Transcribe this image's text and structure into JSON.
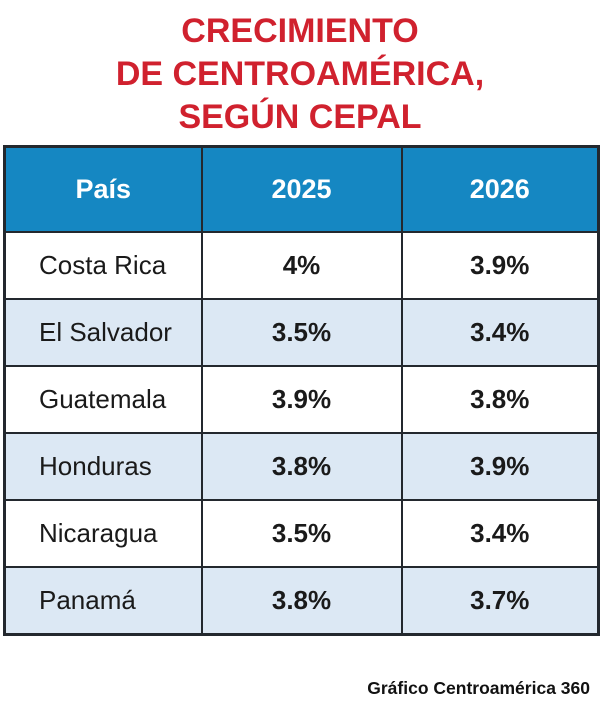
{
  "title": {
    "lines": [
      "CRECIMIENTO",
      "DE CENTROAMÉRICA,",
      "SEGÚN CEPAL"
    ],
    "full_text": "CRECIMIENTO DE CENTROAMÉRICA, SEGÚN CEPAL",
    "color": "#d0212e"
  },
  "table": {
    "headers": [
      "País",
      "2025",
      "2026"
    ],
    "rows": [
      {
        "country": "Costa Rica",
        "y2025": "4%",
        "y2026": "3.9%"
      },
      {
        "country": "El Salvador",
        "y2025": "3.5%",
        "y2026": "3.4%"
      },
      {
        "country": "Guatemala",
        "y2025": "3.9%",
        "y2026": "3.8%"
      },
      {
        "country": "Honduras",
        "y2025": "3.8%",
        "y2026": "3.9%"
      },
      {
        "country": "Nicaragua",
        "y2025": "3.5%",
        "y2026": "3.4%"
      },
      {
        "country": "Panamá",
        "y2025": "3.8%",
        "y2026": "3.7%"
      }
    ]
  },
  "footer": {
    "credit": "Gráfico Centroamérica 360"
  },
  "colors": {
    "title_red": "#d0212e",
    "header_bg": "#1587c2",
    "header_text": "#ffffff",
    "row_alt_bg": "#dce8f4",
    "row_bg": "#ffffff",
    "border": "#23282e",
    "body_text": "#1a1a1a"
  },
  "chart_data": {
    "type": "table",
    "title": "CRECIMIENTO DE CENTROAMÉRICA, SEGÚN CEPAL",
    "categories": [
      "Costa Rica",
      "El Salvador",
      "Guatemala",
      "Honduras",
      "Nicaragua",
      "Panamá"
    ],
    "series": [
      {
        "name": "2025",
        "values": [
          4.0,
          3.5,
          3.9,
          3.8,
          3.5,
          3.8
        ],
        "unit": "%"
      },
      {
        "name": "2026",
        "values": [
          3.9,
          3.4,
          3.8,
          3.9,
          3.4,
          3.7
        ],
        "unit": "%"
      }
    ],
    "source": "Gráfico Centroamérica 360"
  }
}
